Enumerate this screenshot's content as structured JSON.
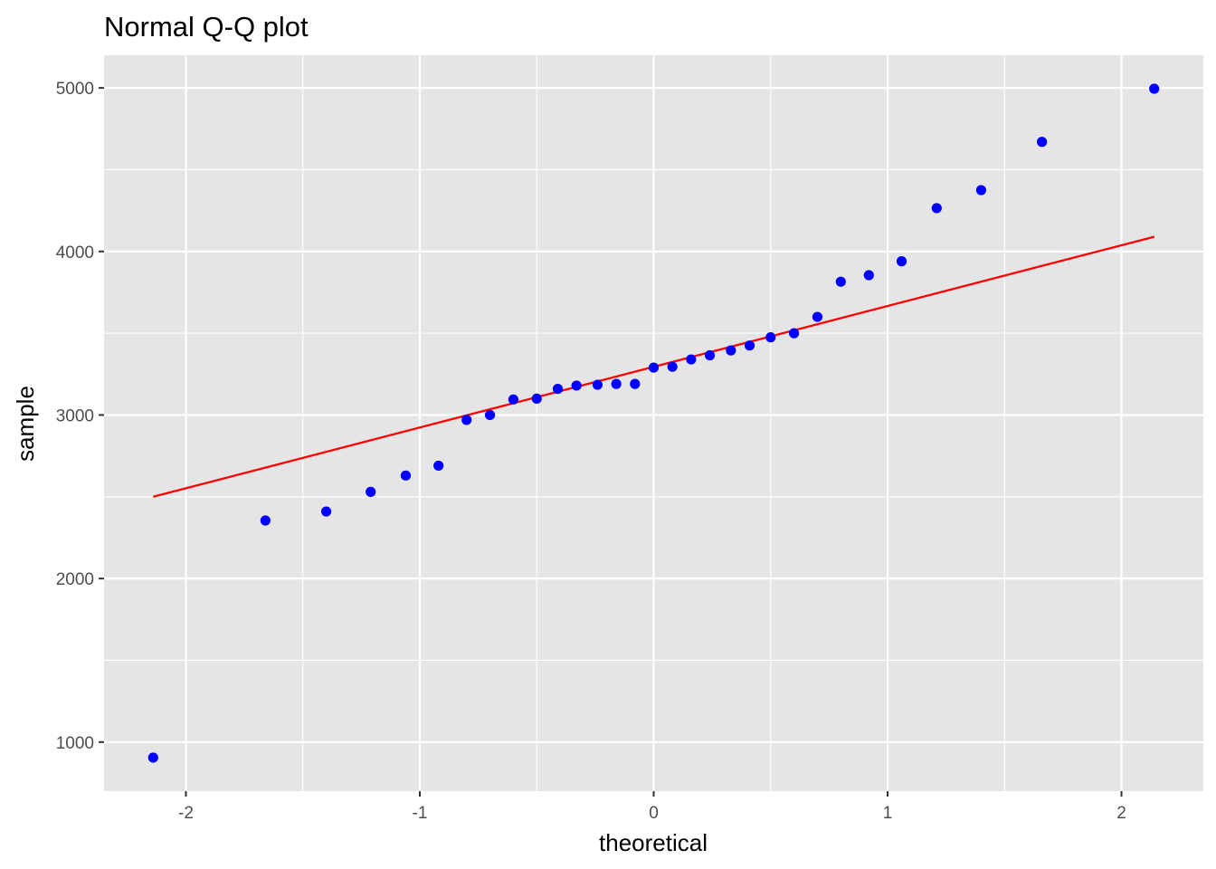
{
  "chart_data": {
    "type": "scatter",
    "title": "Normal Q-Q plot",
    "xlabel": "theoretical",
    "ylabel": "sample",
    "xlim": [
      -2.35,
      2.35
    ],
    "ylim": [
      700,
      5200
    ],
    "x_ticks": [
      -2,
      -1,
      0,
      1,
      2
    ],
    "x_tick_labels": [
      "-2",
      "-1",
      "0",
      "1",
      "2"
    ],
    "y_ticks": [
      1000,
      2000,
      3000,
      4000,
      5000
    ],
    "y_tick_labels": [
      "1000",
      "2000",
      "3000",
      "4000",
      "5000"
    ],
    "grid": true,
    "panel_background": "#e5e5e5",
    "grid_color": "#ffffff",
    "point_color": "#0000ff",
    "line_color": "#ff0000",
    "points": [
      {
        "x": -2.14,
        "y": 905
      },
      {
        "x": -1.66,
        "y": 2355
      },
      {
        "x": -1.4,
        "y": 2410
      },
      {
        "x": -1.21,
        "y": 2530
      },
      {
        "x": -1.06,
        "y": 2630
      },
      {
        "x": -0.92,
        "y": 2690
      },
      {
        "x": -0.8,
        "y": 2970
      },
      {
        "x": -0.7,
        "y": 3000
      },
      {
        "x": -0.6,
        "y": 3095
      },
      {
        "x": -0.5,
        "y": 3100
      },
      {
        "x": -0.41,
        "y": 3160
      },
      {
        "x": -0.33,
        "y": 3180
      },
      {
        "x": -0.24,
        "y": 3185
      },
      {
        "x": -0.16,
        "y": 3190
      },
      {
        "x": -0.08,
        "y": 3190
      },
      {
        "x": 0.0,
        "y": 3290
      },
      {
        "x": 0.08,
        "y": 3295
      },
      {
        "x": 0.16,
        "y": 3340
      },
      {
        "x": 0.24,
        "y": 3365
      },
      {
        "x": 0.33,
        "y": 3395
      },
      {
        "x": 0.41,
        "y": 3425
      },
      {
        "x": 0.5,
        "y": 3475
      },
      {
        "x": 0.6,
        "y": 3500
      },
      {
        "x": 0.7,
        "y": 3600
      },
      {
        "x": 0.8,
        "y": 3815
      },
      {
        "x": 0.92,
        "y": 3855
      },
      {
        "x": 1.06,
        "y": 3940
      },
      {
        "x": 1.21,
        "y": 4265
      },
      {
        "x": 1.4,
        "y": 4375
      },
      {
        "x": 1.66,
        "y": 4670
      },
      {
        "x": 2.14,
        "y": 4995
      }
    ],
    "reference_line": {
      "x": [
        -2.14,
        2.14
      ],
      "y": [
        2500,
        4090
      ]
    }
  }
}
